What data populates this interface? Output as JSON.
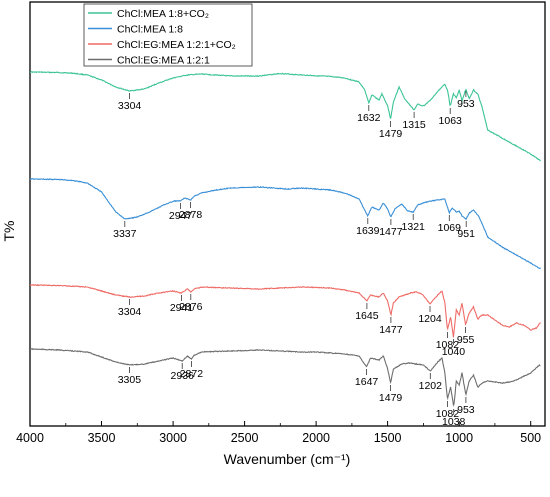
{
  "chart_data": {
    "type": "line",
    "xlabel": "Wavenumber (cm⁻¹)",
    "ylabel": "T%",
    "xlim": [
      4000,
      400
    ],
    "x_ticks": [
      "4000",
      "3500",
      "3000",
      "2500",
      "2000",
      "1500",
      "1000",
      "500"
    ],
    "x_tick_values": [
      4000,
      3500,
      3000,
      2500,
      2000,
      1500,
      1000,
      500
    ],
    "yticks_shown": false,
    "grid": false,
    "legend_position": "top-left",
    "series": [
      {
        "name": "ChCl:MEA 1:8+CO₂",
        "color": "#3cc496",
        "offset": 0,
        "points": [
          [
            4000,
            0
          ],
          [
            3800,
            0.5
          ],
          [
            3700,
            1.2
          ],
          [
            3600,
            3
          ],
          [
            3500,
            8
          ],
          [
            3400,
            15
          ],
          [
            3304,
            19
          ],
          [
            3200,
            17
          ],
          [
            3100,
            11
          ],
          [
            3000,
            6
          ],
          [
            2900,
            3
          ],
          [
            2800,
            2
          ],
          [
            2600,
            4
          ],
          [
            2400,
            4
          ],
          [
            2250,
            1.5
          ],
          [
            2100,
            3
          ],
          [
            1900,
            4.5
          ],
          [
            1800,
            6
          ],
          [
            1700,
            10
          ],
          [
            1660,
            18
          ],
          [
            1632,
            31
          ],
          [
            1610,
            23
          ],
          [
            1560,
            28
          ],
          [
            1540,
            22
          ],
          [
            1500,
            34
          ],
          [
            1479,
            47
          ],
          [
            1460,
            30
          ],
          [
            1420,
            15
          ],
          [
            1380,
            27
          ],
          [
            1315,
            38
          ],
          [
            1290,
            32
          ],
          [
            1250,
            34
          ],
          [
            1200,
            28
          ],
          [
            1140,
            18
          ],
          [
            1100,
            12
          ],
          [
            1080,
            19
          ],
          [
            1063,
            34
          ],
          [
            1040,
            22
          ],
          [
            1020,
            26
          ],
          [
            1000,
            18
          ],
          [
            980,
            29
          ],
          [
            953,
            17
          ],
          [
            930,
            27
          ],
          [
            900,
            18
          ],
          [
            870,
            22
          ],
          [
            840,
            35
          ],
          [
            800,
            58
          ],
          [
            700,
            66
          ],
          [
            600,
            74
          ],
          [
            500,
            82
          ],
          [
            430,
            89
          ]
        ],
        "labels": [
          {
            "text": "3304",
            "x": 3304
          },
          {
            "text": "1632",
            "x": 1632
          },
          {
            "text": "1479",
            "x": 1479
          },
          {
            "text": "1315",
            "x": 1315
          },
          {
            "text": "1063",
            "x": 1063
          },
          {
            "text": "953",
            "x": 953
          }
        ]
      },
      {
        "name": "ChCl:MEA 1:8",
        "color": "#3a8fd6",
        "offset": 107,
        "points": [
          [
            4000,
            0
          ],
          [
            3800,
            0.5
          ],
          [
            3700,
            1.5
          ],
          [
            3600,
            4
          ],
          [
            3500,
            13
          ],
          [
            3400,
            33
          ],
          [
            3337,
            40
          ],
          [
            3250,
            38
          ],
          [
            3150,
            32
          ],
          [
            3050,
            25
          ],
          [
            2990,
            22
          ],
          [
            2947,
            22
          ],
          [
            2920,
            19
          ],
          [
            2878,
            21
          ],
          [
            2850,
            17
          ],
          [
            2800,
            14
          ],
          [
            2700,
            11
          ],
          [
            2600,
            9
          ],
          [
            2400,
            8
          ],
          [
            2300,
            9
          ],
          [
            2200,
            10
          ],
          [
            2100,
            9
          ],
          [
            2000,
            10
          ],
          [
            1900,
            11
          ],
          [
            1800,
            14
          ],
          [
            1700,
            20
          ],
          [
            1639,
            37
          ],
          [
            1610,
            28
          ],
          [
            1560,
            31
          ],
          [
            1530,
            24
          ],
          [
            1500,
            30
          ],
          [
            1477,
            38
          ],
          [
            1450,
            30
          ],
          [
            1400,
            25
          ],
          [
            1360,
            32
          ],
          [
            1321,
            33
          ],
          [
            1290,
            26
          ],
          [
            1250,
            24
          ],
          [
            1200,
            22
          ],
          [
            1150,
            21
          ],
          [
            1100,
            20
          ],
          [
            1069,
            34
          ],
          [
            1050,
            29
          ],
          [
            1020,
            33
          ],
          [
            1000,
            32
          ],
          [
            980,
            37
          ],
          [
            951,
            40
          ],
          [
            930,
            34
          ],
          [
            900,
            31
          ],
          [
            860,
            38
          ],
          [
            800,
            58
          ],
          [
            700,
            68
          ],
          [
            600,
            76
          ],
          [
            500,
            84
          ],
          [
            430,
            90
          ]
        ],
        "labels": [
          {
            "text": "3337",
            "x": 3337
          },
          {
            "text": "2947",
            "x": 2947
          },
          {
            "text": "2878",
            "x": 2878
          },
          {
            "text": "1639",
            "x": 1639
          },
          {
            "text": "1477",
            "x": 1477
          },
          {
            "text": "1321",
            "x": 1321
          },
          {
            "text": "1069",
            "x": 1069
          },
          {
            "text": "951",
            "x": 951
          }
        ]
      },
      {
        "name": "ChCl:EG:MEA 1:2:1+CO₂",
        "color": "#ef6b66",
        "offset": 203,
        "points": [
          [
            4000,
            0
          ],
          [
            3800,
            0.5
          ],
          [
            3600,
            2
          ],
          [
            3500,
            6
          ],
          [
            3400,
            10
          ],
          [
            3304,
            12
          ],
          [
            3200,
            11
          ],
          [
            3100,
            8
          ],
          [
            3000,
            6
          ],
          [
            2941,
            8
          ],
          [
            2900,
            4
          ],
          [
            2876,
            7
          ],
          [
            2850,
            4
          ],
          [
            2800,
            2
          ],
          [
            2600,
            3
          ],
          [
            2400,
            4
          ],
          [
            2250,
            3
          ],
          [
            2100,
            2
          ],
          [
            2000,
            2.5
          ],
          [
            1900,
            3
          ],
          [
            1800,
            5
          ],
          [
            1700,
            8
          ],
          [
            1645,
            16
          ],
          [
            1620,
            10
          ],
          [
            1560,
            12
          ],
          [
            1530,
            8
          ],
          [
            1500,
            16
          ],
          [
            1477,
            30
          ],
          [
            1460,
            18
          ],
          [
            1420,
            12
          ],
          [
            1380,
            10
          ],
          [
            1340,
            8
          ],
          [
            1300,
            7
          ],
          [
            1260,
            9
          ],
          [
            1204,
            19
          ],
          [
            1150,
            10
          ],
          [
            1120,
            6
          ],
          [
            1100,
            18
          ],
          [
            1082,
            45
          ],
          [
            1060,
            32
          ],
          [
            1040,
            52
          ],
          [
            1020,
            25
          ],
          [
            1000,
            30
          ],
          [
            980,
            18
          ],
          [
            955,
            40
          ],
          [
            930,
            28
          ],
          [
            900,
            22
          ],
          [
            870,
            34
          ],
          [
            840,
            30
          ],
          [
            800,
            30
          ],
          [
            750,
            35
          ],
          [
            700,
            40
          ],
          [
            650,
            42
          ],
          [
            600,
            38
          ],
          [
            550,
            40
          ],
          [
            500,
            45
          ],
          [
            460,
            43
          ],
          [
            430,
            37
          ]
        ],
        "labels": [
          {
            "text": "3304",
            "x": 3304
          },
          {
            "text": "2941",
            "x": 2941
          },
          {
            "text": "2876",
            "x": 2876
          },
          {
            "text": "1645",
            "x": 1645
          },
          {
            "text": "1477",
            "x": 1477
          },
          {
            "text": "1204",
            "x": 1204
          },
          {
            "text": "1082",
            "x": 1082
          },
          {
            "text": "1040",
            "x": 1040
          },
          {
            "text": "955",
            "x": 955
          }
        ]
      },
      {
        "name": "ChCl:EG:MEA 1:2:1",
        "color": "#6e6e6e",
        "offset": 266,
        "points": [
          [
            4000,
            0
          ],
          [
            3800,
            1
          ],
          [
            3600,
            3
          ],
          [
            3500,
            8
          ],
          [
            3400,
            13
          ],
          [
            3305,
            16
          ],
          [
            3200,
            15
          ],
          [
            3100,
            12
          ],
          [
            3000,
            9
          ],
          [
            2936,
            12
          ],
          [
            2900,
            7
          ],
          [
            2872,
            10
          ],
          [
            2850,
            6
          ],
          [
            2800,
            3
          ],
          [
            2600,
            2
          ],
          [
            2400,
            1
          ],
          [
            2250,
            2
          ],
          [
            2100,
            3
          ],
          [
            2000,
            3
          ],
          [
            1900,
            4
          ],
          [
            1800,
            5
          ],
          [
            1700,
            7
          ],
          [
            1647,
            18
          ],
          [
            1620,
            9
          ],
          [
            1560,
            11
          ],
          [
            1530,
            7
          ],
          [
            1500,
            20
          ],
          [
            1479,
            34
          ],
          [
            1460,
            20
          ],
          [
            1400,
            15
          ],
          [
            1350,
            14
          ],
          [
            1300,
            15
          ],
          [
            1250,
            16
          ],
          [
            1202,
            22
          ],
          [
            1150,
            13
          ],
          [
            1120,
            9
          ],
          [
            1100,
            24
          ],
          [
            1082,
            50
          ],
          [
            1060,
            38
          ],
          [
            1038,
            58
          ],
          [
            1020,
            32
          ],
          [
            1000,
            36
          ],
          [
            980,
            24
          ],
          [
            953,
            46
          ],
          [
            930,
            32
          ],
          [
            900,
            26
          ],
          [
            870,
            38
          ],
          [
            840,
            34
          ],
          [
            800,
            32
          ],
          [
            750,
            33
          ],
          [
            700,
            34
          ],
          [
            650,
            33
          ],
          [
            600,
            31
          ],
          [
            560,
            28
          ],
          [
            530,
            26
          ],
          [
            500,
            24
          ],
          [
            470,
            20
          ],
          [
            440,
            16
          ],
          [
            430,
            17
          ]
        ],
        "labels": [
          {
            "text": "3305",
            "x": 3305
          },
          {
            "text": "2936",
            "x": 2936
          },
          {
            "text": "2872",
            "x": 2872
          },
          {
            "text": "1647",
            "x": 1647
          },
          {
            "text": "1479",
            "x": 1479
          },
          {
            "text": "1202",
            "x": 1202
          },
          {
            "text": "1082",
            "x": 1082
          },
          {
            "text": "1038",
            "x": 1038
          },
          {
            "text": "953",
            "x": 953
          }
        ]
      }
    ]
  }
}
